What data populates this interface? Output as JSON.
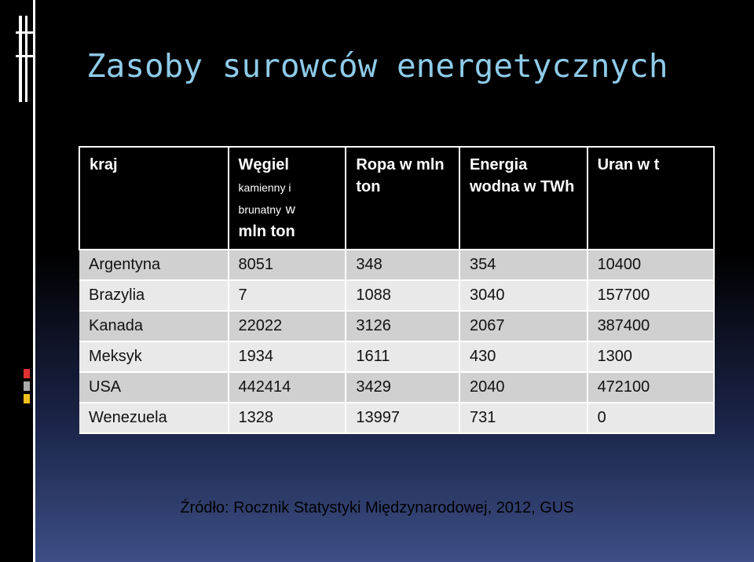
{
  "title": "Zasoby surowców energetycznych",
  "table": {
    "header": [
      "kraj",
      [
        "Węgiel",
        "kamienny i",
        "brunatny",
        "w",
        "mln ton"
      ],
      "Ropa w mln ton",
      "Energia wodna w TWh",
      "Uran w t"
    ],
    "rows": [
      [
        "Argentyna",
        8051,
        348,
        354,
        10400
      ],
      [
        "Brazylia",
        7,
        1088,
        3040,
        157700
      ],
      [
        "Kanada",
        22022,
        3126,
        2067,
        387400
      ],
      [
        "Meksyk",
        1934,
        1611,
        430,
        1300
      ],
      [
        "USA",
        442414,
        3429,
        2040,
        472100
      ],
      [
        "Wenezuela",
        1328,
        13997,
        731,
        0
      ]
    ]
  },
  "source": "Źródło: Rocznik Statystyki Międzynarodowej, 2012, GUS"
}
